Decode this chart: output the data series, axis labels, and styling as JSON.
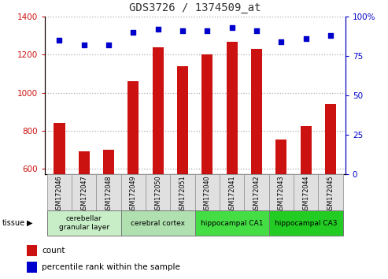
{
  "title": "GDS3726 / 1374509_at",
  "samples": [
    "GSM172046",
    "GSM172047",
    "GSM172048",
    "GSM172049",
    "GSM172050",
    "GSM172051",
    "GSM172040",
    "GSM172041",
    "GSM172042",
    "GSM172043",
    "GSM172044",
    "GSM172045"
  ],
  "counts": [
    840,
    690,
    700,
    1060,
    1240,
    1140,
    1200,
    1270,
    1230,
    755,
    825,
    940
  ],
  "percentiles": [
    85,
    82,
    82,
    90,
    92,
    91,
    91,
    93,
    91,
    84,
    86,
    88
  ],
  "ylim_left": [
    570,
    1400
  ],
  "ylim_right": [
    0,
    100
  ],
  "yticks_left": [
    600,
    800,
    1000,
    1200,
    1400
  ],
  "yticks_right": [
    0,
    25,
    50,
    75,
    100
  ],
  "ytick_right_labels": [
    "0",
    "25",
    "50",
    "75",
    "100%"
  ],
  "tissue_groups": [
    {
      "label": "cerebellar\ngranular layer",
      "start": 0,
      "end": 3,
      "color": "#c8eec8"
    },
    {
      "label": "cerebral cortex",
      "start": 3,
      "end": 6,
      "color": "#b0e0b0"
    },
    {
      "label": "hippocampal CA1",
      "start": 6,
      "end": 9,
      "color": "#44dd44"
    },
    {
      "label": "hippocampal CA3",
      "start": 9,
      "end": 12,
      "color": "#22cc22"
    }
  ],
  "bar_color": "#cc1111",
  "dot_color": "#0000cc",
  "grid_color": "#aaaaaa",
  "title_color": "#333333",
  "left_tick_color": "#cc1111",
  "right_tick_color": "#0000cc",
  "bar_width": 0.45,
  "legend_items": [
    {
      "label": "count",
      "color": "#cc1111"
    },
    {
      "label": "percentile rank within the sample",
      "color": "#0000cc"
    }
  ]
}
